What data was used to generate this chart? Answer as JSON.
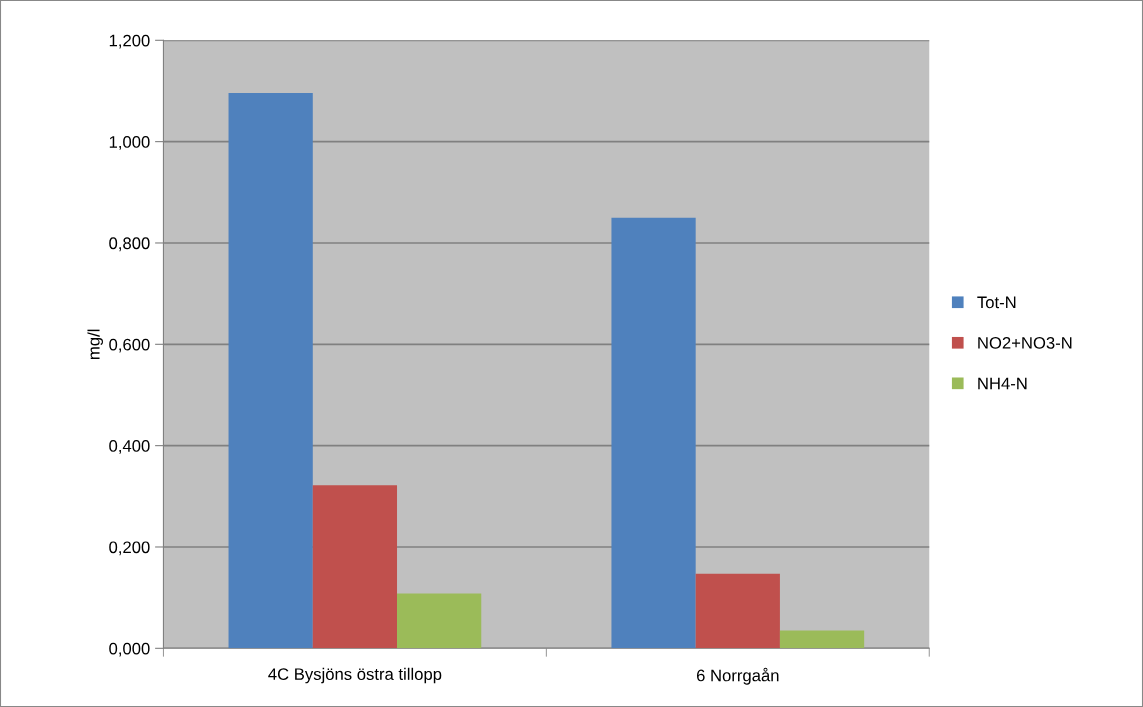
{
  "chart_data": {
    "type": "bar",
    "ylabel": "mg/l",
    "categories": [
      "4C Bysjöns östra tillopp",
      "6 Norrgaån"
    ],
    "series": [
      {
        "name": "Tot-N",
        "color": "#4f81bd",
        "values": [
          1.096,
          0.85
        ]
      },
      {
        "name": "NO2+NO3-N",
        "color": "#c0504d",
        "values": [
          0.322,
          0.147
        ]
      },
      {
        "name": "NH4-N",
        "color": "#9bbb59",
        "values": [
          0.108,
          0.035
        ]
      }
    ],
    "ylim": [
      0,
      1.2
    ],
    "yticks": [
      {
        "value": 0,
        "label": "0,000"
      },
      {
        "value": 0.2,
        "label": "0,200"
      },
      {
        "value": 0.4,
        "label": "0,400"
      },
      {
        "value": 0.6,
        "label": "0,600"
      },
      {
        "value": 0.8,
        "label": "0,800"
      },
      {
        "value": 1.0,
        "label": "1,000"
      },
      {
        "value": 1.2,
        "label": "1,200"
      }
    ],
    "grid": "y",
    "legend": "right"
  }
}
